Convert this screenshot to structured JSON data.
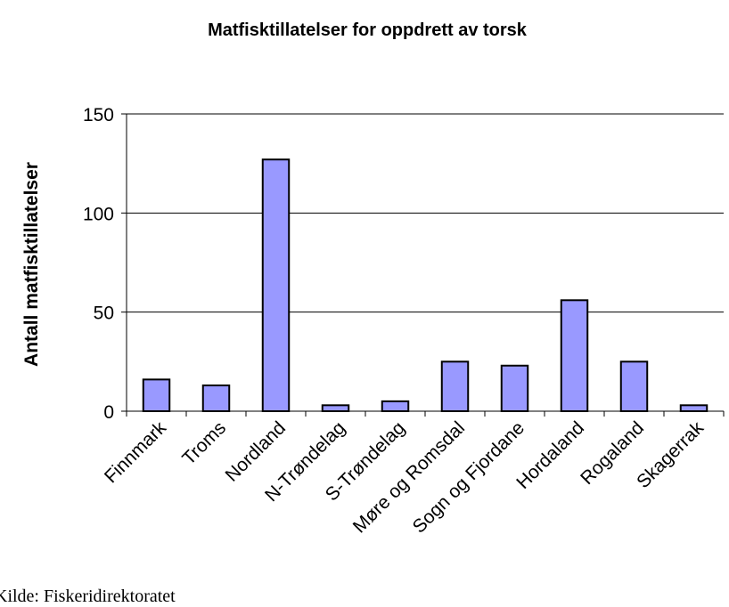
{
  "chart_data": {
    "type": "bar",
    "title": "Matfisktillatelser for oppdrett av torsk",
    "y_label": "Antall matfisktillatelser",
    "source": "Kilde: Fiskeridirektoratet",
    "categories": [
      "Finnmark",
      "Troms",
      "Nordland",
      "N-Trøndelag",
      "S-Trøndelag",
      "Møre og Romsdal",
      "Sogn og Fjordane",
      "Hordaland",
      "Rogaland",
      "Skagerrak"
    ],
    "values": [
      16,
      13,
      127,
      3,
      5,
      25,
      23,
      56,
      25,
      3
    ],
    "color": "#9999ff",
    "ylim": [
      0,
      150
    ],
    "yticks": [
      0,
      50,
      100,
      150
    ],
    "grid": true
  }
}
